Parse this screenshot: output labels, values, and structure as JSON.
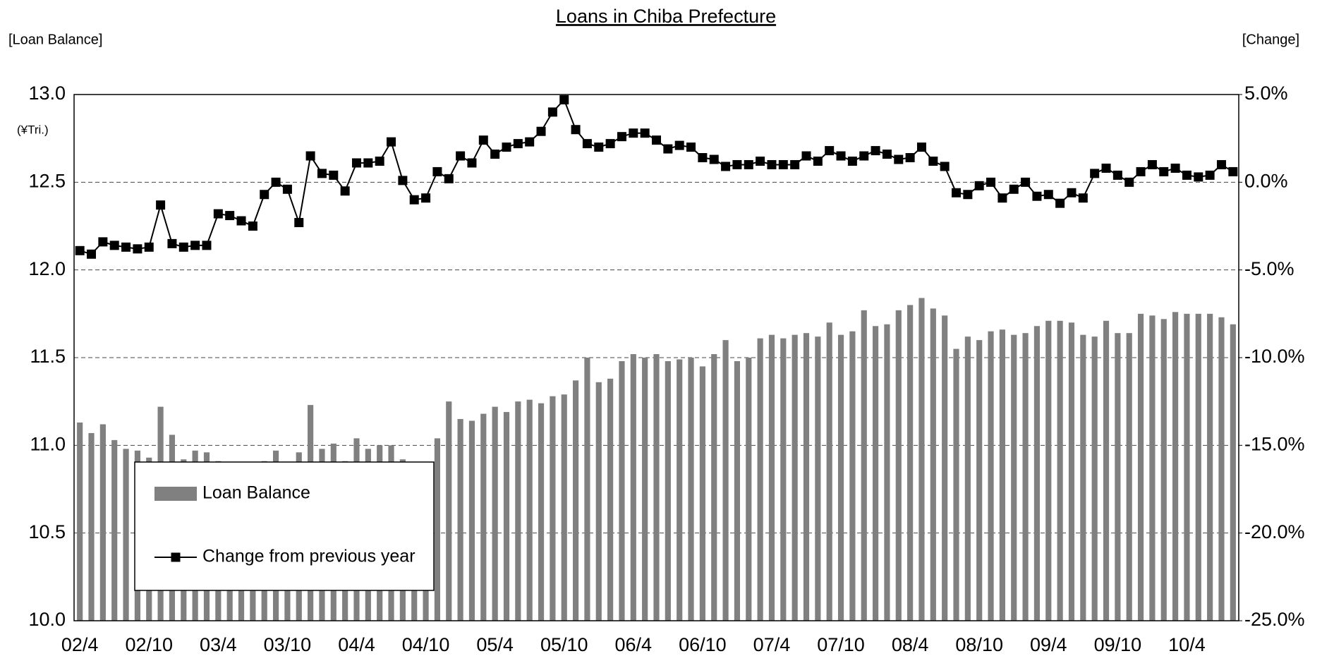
{
  "chart_data": {
    "type": "bar_line",
    "title": "Loans in Chiba Prefecture",
    "y_axis_title": "[Loan Balance]",
    "y2_axis_title": "[Change]",
    "y_unit": "(¥Tri.)",
    "categories": [
      "02/4",
      null,
      null,
      null,
      null,
      null,
      "02/10",
      null,
      null,
      null,
      null,
      null,
      "03/4",
      null,
      null,
      null,
      null,
      null,
      "03/10",
      null,
      null,
      null,
      null,
      null,
      "04/4",
      null,
      null,
      null,
      null,
      null,
      "04/10",
      null,
      null,
      null,
      null,
      null,
      "05/4",
      null,
      null,
      null,
      null,
      null,
      "05/10",
      null,
      null,
      null,
      null,
      null,
      "06/4",
      null,
      null,
      null,
      null,
      null,
      "06/10",
      null,
      null,
      null,
      null,
      null,
      "07/4",
      null,
      null,
      null,
      null,
      null,
      "07/10",
      null,
      null,
      null,
      null,
      null,
      "08/4",
      null,
      null,
      null,
      null,
      null,
      "08/10",
      null,
      null,
      null,
      null,
      null,
      "09/4",
      null,
      null,
      null,
      null,
      null,
      "09/10",
      null,
      null,
      null,
      null,
      null,
      "10/4",
      null,
      null,
      null,
      null
    ],
    "series": [
      {
        "name": "Loan Balance",
        "type": "bar",
        "axis": "y",
        "color": "#808080",
        "values": [
          11.13,
          11.07,
          11.12,
          11.03,
          10.98,
          10.97,
          10.93,
          11.22,
          11.06,
          10.92,
          10.97,
          10.96,
          10.91,
          10.89,
          10.88,
          10.88,
          10.91,
          10.97,
          10.89,
          10.96,
          11.23,
          10.98,
          11.01,
          10.91,
          11.04,
          10.98,
          11.0,
          11.0,
          10.92,
          10.88,
          10.87,
          11.04,
          11.25,
          11.15,
          11.14,
          11.18,
          11.22,
          11.19,
          11.25,
          11.26,
          11.24,
          11.28,
          11.29,
          11.37,
          11.5,
          11.36,
          11.38,
          11.48,
          11.52,
          11.5,
          11.52,
          11.48,
          11.49,
          11.5,
          11.45,
          11.52,
          11.6,
          11.48,
          11.5,
          11.61,
          11.63,
          11.61,
          11.63,
          11.64,
          11.62,
          11.7,
          11.63,
          11.65,
          11.77,
          11.68,
          11.69,
          11.77,
          11.8,
          11.84,
          11.78,
          11.74,
          11.55,
          11.62,
          11.6,
          11.65,
          11.66,
          11.63,
          11.64,
          11.68,
          11.71,
          11.71,
          11.7,
          11.63,
          11.62,
          11.71,
          11.64,
          11.64,
          11.75,
          11.74,
          11.72,
          11.76,
          11.75,
          11.75,
          11.75,
          11.73,
          11.69
        ]
      },
      {
        "name": "Change from previous year",
        "type": "line",
        "axis": "y2",
        "color": "#000000",
        "values": [
          -3.9,
          -4.1,
          -3.4,
          -3.6,
          -3.7,
          -3.8,
          -3.7,
          -1.3,
          -3.5,
          -3.7,
          -3.6,
          -3.6,
          -1.8,
          -1.9,
          -2.2,
          -2.5,
          -0.7,
          0.0,
          -0.4,
          -2.3,
          1.5,
          0.5,
          0.4,
          -0.5,
          1.1,
          1.1,
          1.2,
          2.3,
          0.1,
          -1.0,
          -0.9,
          0.6,
          0.2,
          1.5,
          1.1,
          2.4,
          1.6,
          2.0,
          2.2,
          2.3,
          2.9,
          4.0,
          4.7,
          3.0,
          2.2,
          2.0,
          2.2,
          2.6,
          2.8,
          2.8,
          2.4,
          1.9,
          2.1,
          2.0,
          1.4,
          1.3,
          0.9,
          1.0,
          1.0,
          1.2,
          1.0,
          1.0,
          1.0,
          1.5,
          1.2,
          1.8,
          1.5,
          1.2,
          1.5,
          1.8,
          1.6,
          1.3,
          1.4,
          2.0,
          1.2,
          0.9,
          -0.6,
          -0.7,
          -0.2,
          0.0,
          -0.9,
          -0.4,
          0.0,
          -0.8,
          -0.7,
          -1.2,
          -0.6,
          -0.9,
          0.5,
          0.8,
          0.4,
          0.0,
          0.6,
          1.0,
          0.6,
          0.8,
          0.4,
          0.3,
          0.4,
          1.0,
          0.6
        ]
      }
    ],
    "ylim": [
      10,
      13
    ],
    "yticks": [
      {
        "value": 10,
        "label": "10.0"
      },
      {
        "value": 10.5,
        "label": "10.5"
      },
      {
        "value": 11,
        "label": "11.0"
      },
      {
        "value": 11.5,
        "label": "11.5"
      },
      {
        "value": 12,
        "label": "12.0"
      },
      {
        "value": 12.5,
        "label": "12.5"
      },
      {
        "value": 13,
        "label": "13.0"
      }
    ],
    "y2lim": [
      -25,
      5
    ],
    "y2ticks": [
      {
        "value": -25,
        "label": "-25.0%"
      },
      {
        "value": -20,
        "label": "-20.0%"
      },
      {
        "value": -15,
        "label": "-15.0%"
      },
      {
        "value": -10,
        "label": "-10.0%"
      },
      {
        "value": -5,
        "label": "-5.0%"
      },
      {
        "value": 0,
        "label": "0.0%"
      },
      {
        "value": 5,
        "label": "5.0%"
      }
    ],
    "grid": true,
    "legend": "lower left"
  }
}
